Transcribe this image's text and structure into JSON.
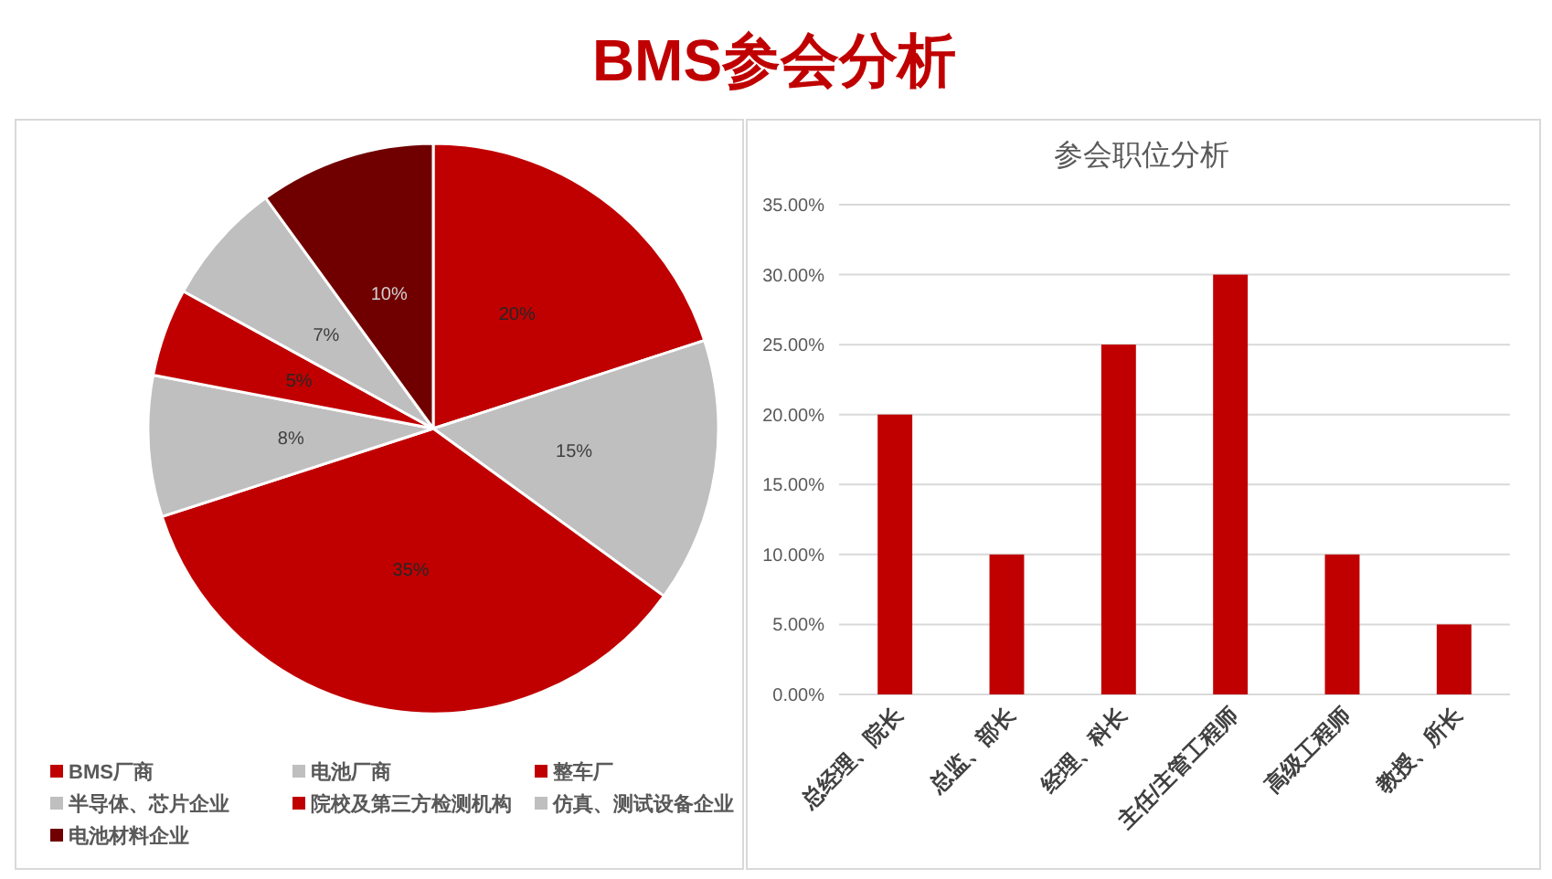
{
  "chart_data": [
    {
      "type": "pie",
      "title": "BMS参会分析",
      "categories": [
        "BMS厂商",
        "电池厂商",
        "整车厂",
        "半导体、芯片企业",
        "院校及第三方检测机构",
        "仿真、测试设备企业",
        "电池材料企业"
      ],
      "values": [
        20,
        15,
        35,
        8,
        5,
        7,
        10
      ],
      "colors": [
        "#c00000",
        "#bfbfbf",
        "#c00000",
        "#bfbfbf",
        "#c00000",
        "#bfbfbf",
        "#700000"
      ],
      "value_labels": [
        "20%",
        "15%",
        "35%",
        "8%",
        "5%",
        "7%",
        "10%"
      ],
      "legend": "bottom"
    },
    {
      "type": "bar",
      "title": "参会职位分析",
      "categories": [
        "总经理、院长",
        "总监、部长",
        "经理、科长",
        "主任/主管工程师",
        "高级工程师",
        "教授、所长"
      ],
      "values": [
        20,
        10,
        25,
        30,
        10,
        5
      ],
      "color": "#c00000",
      "ylim": [
        0,
        35
      ],
      "yticks": [
        {
          "value": 0,
          "label": "0.00%"
        },
        {
          "value": 5,
          "label": "5.00%"
        },
        {
          "value": 10,
          "label": "10.00%"
        },
        {
          "value": 15,
          "label": "15.00%"
        },
        {
          "value": 20,
          "label": "20.00%"
        },
        {
          "value": 25,
          "label": "25.00%"
        },
        {
          "value": 30,
          "label": "30.00%"
        },
        {
          "value": 35,
          "label": "35.00%"
        }
      ],
      "grid": "y"
    }
  ]
}
